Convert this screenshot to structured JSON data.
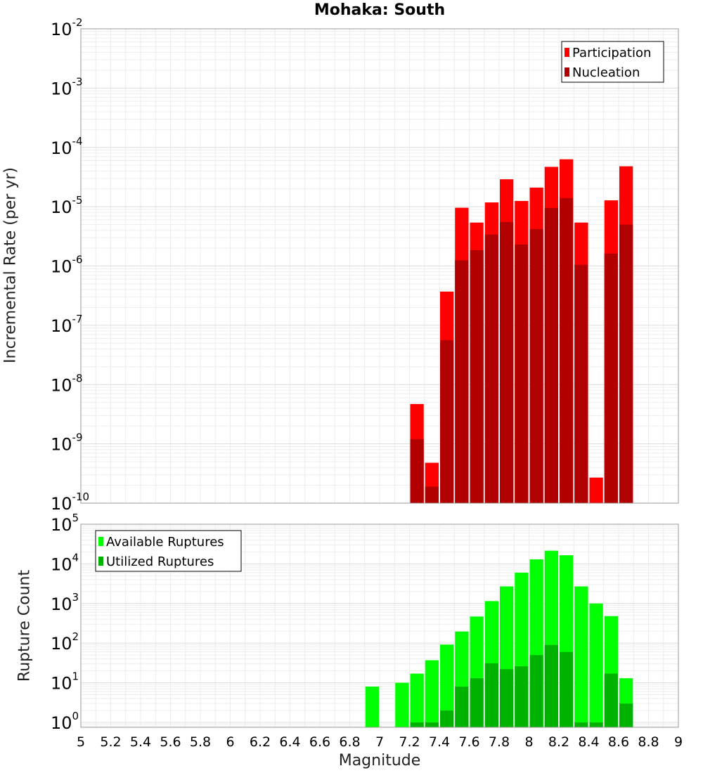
{
  "title": "Mohaka: South",
  "chart_data": [
    {
      "type": "bar",
      "subtype": "overlapped",
      "ylabel": "Incremental Rate (per yr)",
      "xlabel": "",
      "yscale": "log",
      "xlim": [
        5,
        9
      ],
      "ylim": [
        1e-10,
        0.01
      ],
      "ytick_labels": [
        {
          "base": "10",
          "exp": "-10"
        },
        {
          "base": "10",
          "exp": "-9"
        },
        {
          "base": "10",
          "exp": "-8"
        },
        {
          "base": "10",
          "exp": "-7"
        },
        {
          "base": "10",
          "exp": "-6"
        },
        {
          "base": "10",
          "exp": "-5"
        },
        {
          "base": "10",
          "exp": "-4"
        },
        {
          "base": "10",
          "exp": "-3"
        },
        {
          "base": "10",
          "exp": "-2"
        }
      ],
      "grid": true,
      "legend_position": "top-right",
      "x": [
        7.25,
        7.35,
        7.45,
        7.55,
        7.65,
        7.75,
        7.85,
        7.95,
        8.05,
        8.15,
        8.25,
        8.35,
        8.45,
        8.55,
        8.65
      ],
      "series": [
        {
          "name": "Participation",
          "color": "#ff0000",
          "values": [
            4.7e-09,
            4.8e-10,
            3.7e-07,
            9.6e-06,
            5.4e-06,
            1.18e-05,
            2.9e-05,
            1.25e-05,
            2.1e-05,
            4.7e-05,
            6.3e-05,
            5.4e-06,
            2.7e-10,
            1.28e-05,
            4.8e-05
          ]
        },
        {
          "name": "Nucleation",
          "color": "#b20000",
          "values": [
            1.2e-09,
            1.9e-10,
            5.6e-08,
            1.25e-06,
            1.85e-06,
            3.4e-06,
            5.5e-06,
            2.3e-06,
            4.2e-06,
            9.5e-06,
            1.4e-05,
            1.05e-06,
            null,
            1.62e-06,
            5e-06
          ]
        }
      ]
    },
    {
      "type": "bar",
      "subtype": "overlapped",
      "ylabel": "Rupture Count",
      "xlabel": "Magnitude",
      "yscale": "log",
      "xlim": [
        5,
        9
      ],
      "ylim": [
        0.75,
        100000.0
      ],
      "ytick_labels": [
        {
          "base": "10",
          "exp": "0"
        },
        {
          "base": "10",
          "exp": "1"
        },
        {
          "base": "10",
          "exp": "2"
        },
        {
          "base": "10",
          "exp": "3"
        },
        {
          "base": "10",
          "exp": "4"
        },
        {
          "base": "10",
          "exp": "5"
        }
      ],
      "xtick_labels": [
        "5",
        "5.2",
        "5.4",
        "5.6",
        "5.8",
        "6",
        "6.2",
        "6.4",
        "6.6",
        "6.8",
        "7",
        "7.2",
        "7.4",
        "7.6",
        "7.8",
        "8",
        "8.2",
        "8.4",
        "8.6",
        "8.8",
        "9"
      ],
      "grid": true,
      "legend_position": "top-left",
      "x": [
        6.95,
        7.15,
        7.25,
        7.35,
        7.45,
        7.55,
        7.65,
        7.75,
        7.85,
        7.95,
        8.05,
        8.15,
        8.25,
        8.35,
        8.45,
        8.55,
        8.65
      ],
      "series": [
        {
          "name": "Available Ruptures",
          "color": "#00ff00",
          "values": [
            8,
            10,
            17,
            37,
            92,
            196,
            470,
            1150,
            2700,
            6000,
            13000,
            21500,
            16500,
            2700,
            1000,
            480,
            13
          ]
        },
        {
          "name": "Utilized Ruptures",
          "color": "#00b200",
          "values": [
            null,
            null,
            1,
            1,
            2,
            8,
            13,
            31,
            22,
            26,
            50,
            90,
            60,
            1,
            1,
            17,
            3
          ]
        }
      ]
    }
  ]
}
